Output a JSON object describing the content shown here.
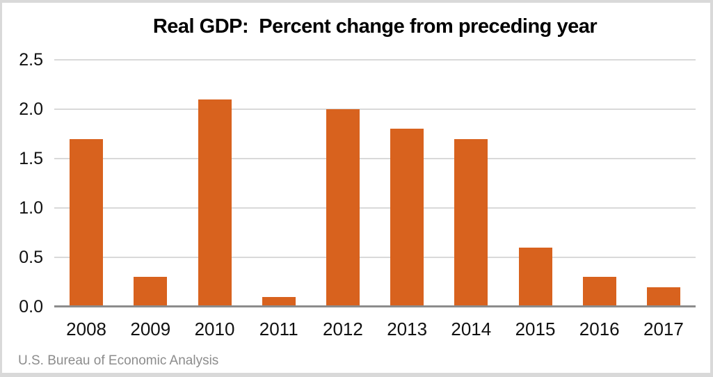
{
  "chart_data": {
    "type": "bar",
    "title": "Real GDP:  Percent change from preceding year",
    "categories": [
      "2008",
      "2009",
      "2010",
      "2011",
      "2012",
      "2013",
      "2014",
      "2015",
      "2016",
      "2017"
    ],
    "values": [
      1.7,
      0.3,
      2.1,
      0.1,
      2.0,
      1.8,
      1.7,
      0.6,
      0.3,
      0.2
    ],
    "xlabel": "",
    "ylabel": "",
    "ylim": [
      0,
      2.5
    ],
    "ytick_interval": 0.5,
    "ytick_labels": [
      "0.0",
      "0.5",
      "1.0",
      "1.5",
      "2.0",
      "2.5"
    ],
    "grid": true,
    "legend": "none",
    "bar_color": "#d8621e",
    "gridline_color": "#d9d9d9",
    "axis_line_color": "#8c8c8c",
    "source": "U.S. Bureau of Economic Analysis"
  }
}
